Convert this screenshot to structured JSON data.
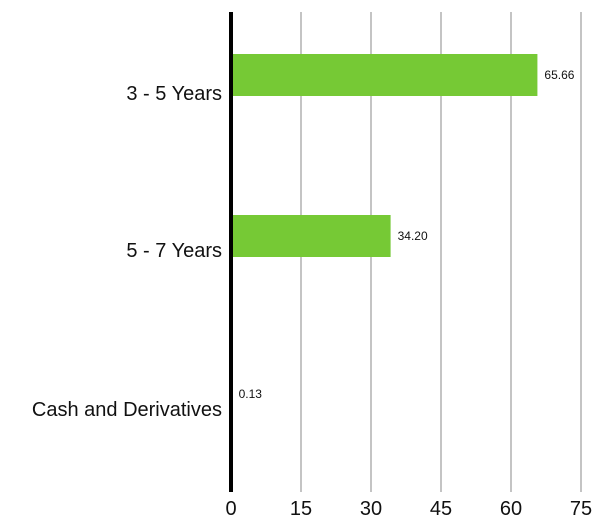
{
  "chart_data": {
    "type": "bar",
    "orientation": "horizontal",
    "categories": [
      "3 - 5 Years",
      "5 - 7 Years",
      "Cash and Derivatives"
    ],
    "values": [
      65.66,
      34.2,
      0.13
    ],
    "data_labels": [
      "65.66",
      "34.20",
      "0.13"
    ],
    "xticks": [
      0,
      15,
      30,
      45,
      60,
      75
    ],
    "xlim": [
      0,
      75
    ],
    "grid": "vertical",
    "legend": "none",
    "title": "",
    "xlabel": "",
    "ylabel": "",
    "colors": {
      "bar": "#76c935",
      "gridline": "#c4c4c4",
      "axis": "#000000"
    }
  }
}
